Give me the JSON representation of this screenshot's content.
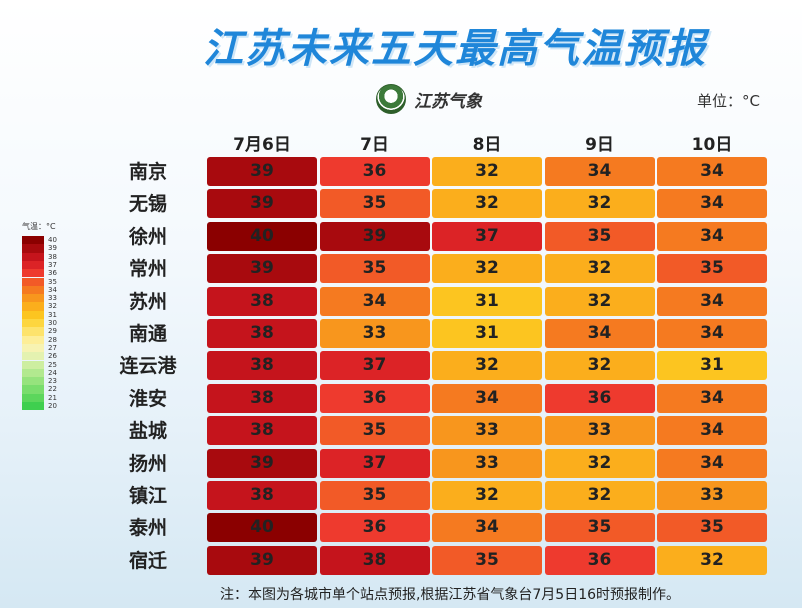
{
  "title": "江苏未来五天最高气温预报",
  "logo_text": "江苏气象",
  "unit_label": "单位：°C",
  "legend": {
    "title": "气温：°C",
    "stops": [
      {
        "value": "40",
        "color": "#8b0000"
      },
      {
        "value": "39",
        "color": "#a80a0e"
      },
      {
        "value": "38",
        "color": "#c5141c"
      },
      {
        "value": "37",
        "color": "#dc2326"
      },
      {
        "value": "36",
        "color": "#ee3a2e"
      },
      {
        "value": "35",
        "color": "#f25a27"
      },
      {
        "value": "34",
        "color": "#f57a20"
      },
      {
        "value": "33",
        "color": "#f8961d"
      },
      {
        "value": "32",
        "color": "#fbae1c"
      },
      {
        "value": "31",
        "color": "#fcc520"
      },
      {
        "value": "30",
        "color": "#fdd63f"
      },
      {
        "value": "29",
        "color": "#fde36c"
      },
      {
        "value": "28",
        "color": "#fdee98"
      },
      {
        "value": "27",
        "color": "#f7f3b2"
      },
      {
        "value": "26",
        "color": "#e4f2b0"
      },
      {
        "value": "25",
        "color": "#cdeea0"
      },
      {
        "value": "24",
        "color": "#b2e98f"
      },
      {
        "value": "23",
        "color": "#96e37d"
      },
      {
        "value": "22",
        "color": "#79dd6c"
      },
      {
        "value": "21",
        "color": "#5cd65c"
      },
      {
        "value": "20",
        "color": "#3fcf4f"
      }
    ]
  },
  "note": "注：本图为各城市单个站点预报,根据江苏省气象台7月5日16时预报制作。",
  "chart_data": {
    "type": "heatmap",
    "title": "江苏未来五天最高气温预报",
    "unit": "°C",
    "columns": [
      "7月6日",
      "7日",
      "8日",
      "9日",
      "10日"
    ],
    "rows": [
      {
        "city": "南京",
        "values": [
          39,
          36,
          32,
          34,
          34
        ]
      },
      {
        "city": "无锡",
        "values": [
          39,
          35,
          32,
          32,
          34
        ]
      },
      {
        "city": "徐州",
        "values": [
          40,
          39,
          37,
          35,
          34
        ]
      },
      {
        "city": "常州",
        "values": [
          39,
          35,
          32,
          32,
          35
        ]
      },
      {
        "city": "苏州",
        "values": [
          38,
          34,
          31,
          32,
          34
        ]
      },
      {
        "city": "南通",
        "values": [
          38,
          33,
          31,
          34,
          34
        ]
      },
      {
        "city": "连云港",
        "values": [
          38,
          37,
          32,
          32,
          31
        ]
      },
      {
        "city": "淮安",
        "values": [
          38,
          36,
          34,
          36,
          34
        ]
      },
      {
        "city": "盐城",
        "values": [
          38,
          35,
          33,
          33,
          34
        ]
      },
      {
        "city": "扬州",
        "values": [
          39,
          37,
          33,
          32,
          34
        ]
      },
      {
        "city": "镇江",
        "values": [
          38,
          35,
          32,
          32,
          33
        ]
      },
      {
        "city": "泰州",
        "values": [
          40,
          36,
          34,
          35,
          35
        ]
      },
      {
        "city": "宿迁",
        "values": [
          39,
          38,
          35,
          36,
          32
        ]
      }
    ]
  }
}
